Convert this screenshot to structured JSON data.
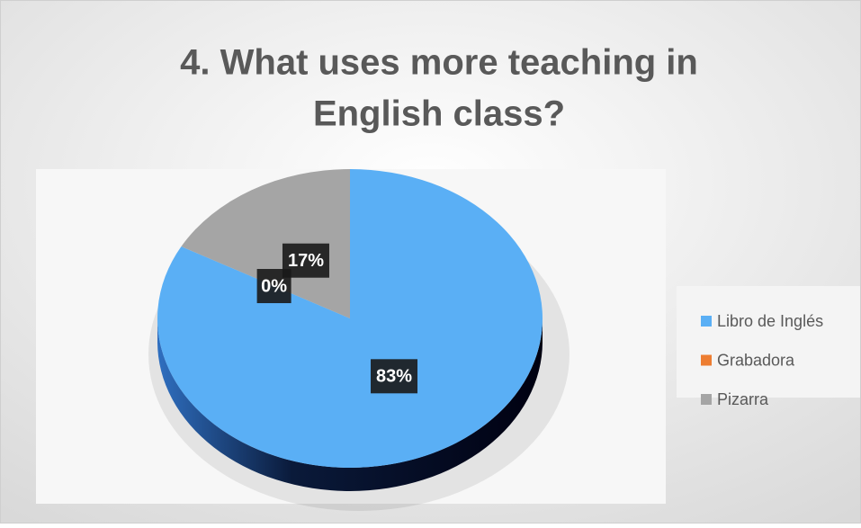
{
  "chart_data": {
    "type": "pie",
    "title": [
      "4. What uses more teaching in",
      "English class?"
    ],
    "categories": [
      "Libro de Inglés",
      "Grabadora",
      "Pizarra"
    ],
    "values": [
      83,
      0,
      17
    ],
    "value_labels": [
      "83%",
      "0%",
      "17%"
    ],
    "colors": [
      "#5aaff5",
      "#ed7d31",
      "#a5a5a5"
    ],
    "legend": "right"
  }
}
